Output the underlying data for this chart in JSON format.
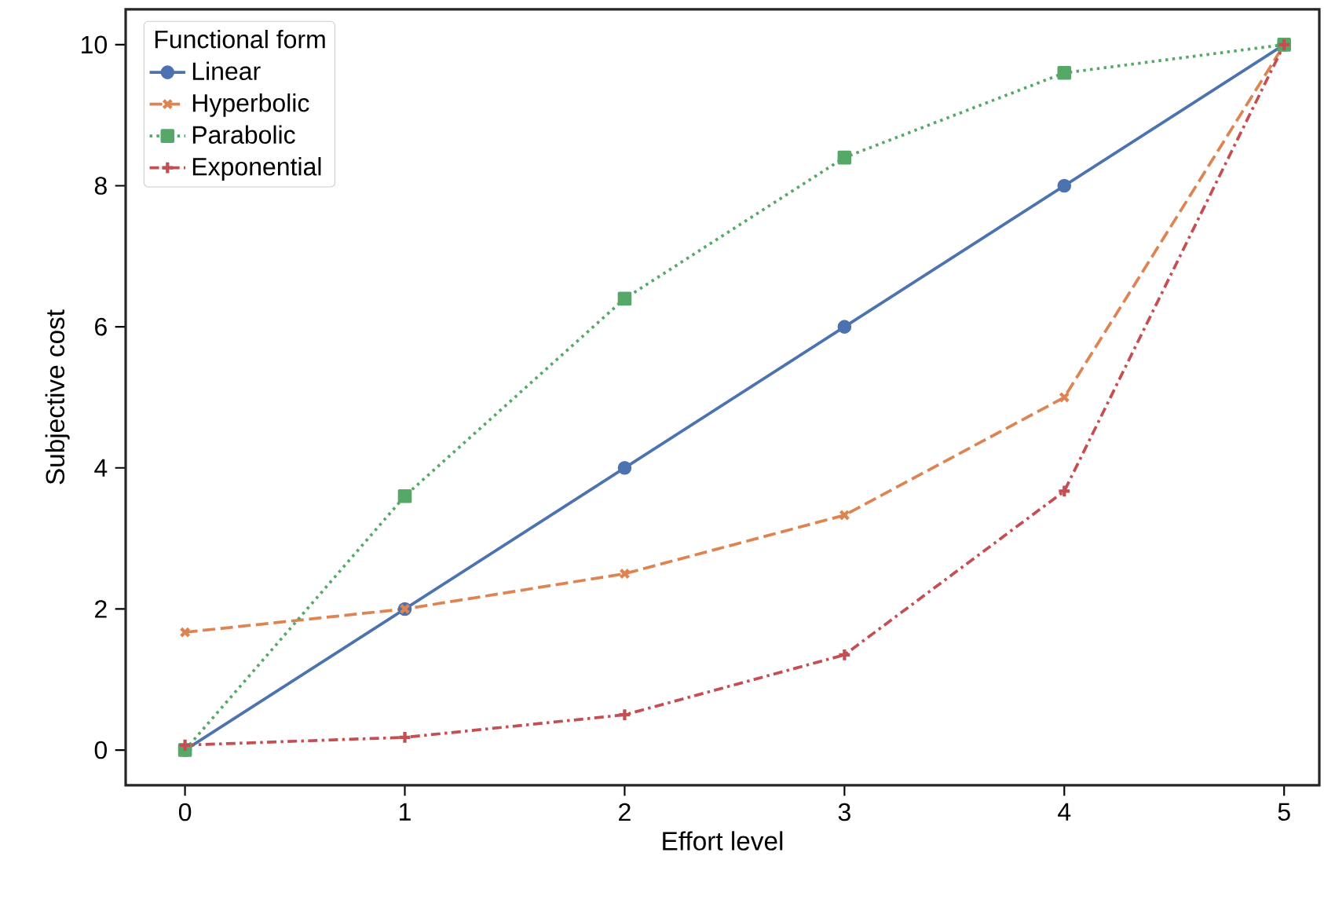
{
  "chart_data": {
    "type": "line",
    "xlabel": "Effort level",
    "ylabel": "Subjective cost",
    "legend_title": "Functional form",
    "legend": "top left",
    "grid": false,
    "x": [
      0,
      1,
      2,
      3,
      4,
      5
    ],
    "xlim": [
      -0.27,
      5.16
    ],
    "ylim": [
      -0.5,
      10.5
    ],
    "xticks": [
      0,
      1,
      2,
      3,
      4,
      5
    ],
    "yticks": [
      0,
      2,
      4,
      6,
      8,
      10
    ],
    "series": [
      {
        "name": "Linear",
        "color": "#4c72b0",
        "marker": "circle",
        "line_style": "solid",
        "values": [
          0,
          2,
          4,
          6,
          8,
          10
        ]
      },
      {
        "name": "Hyperbolic",
        "color": "#dd8452",
        "marker": "cross",
        "line_style": "dashed",
        "values": [
          1.67,
          2,
          2.5,
          3.33,
          5,
          10
        ]
      },
      {
        "name": "Parabolic",
        "color": "#55a868",
        "marker": "square",
        "line_style": "dotted",
        "values": [
          0,
          3.6,
          6.4,
          8.4,
          9.6,
          10
        ]
      },
      {
        "name": "Exponential",
        "color": "#c44e52",
        "marker": "plus",
        "line_style": "dashdot",
        "values": [
          0.07,
          0.18,
          0.5,
          1.35,
          3.67,
          10
        ]
      }
    ]
  }
}
